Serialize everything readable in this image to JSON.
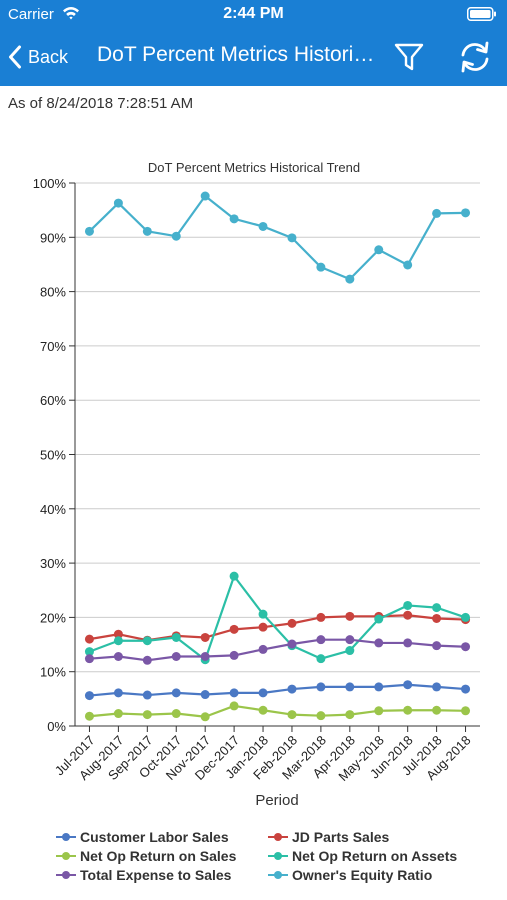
{
  "status_bar": {
    "carrier": "Carrier",
    "time": "2:44 PM"
  },
  "nav": {
    "back_label": "Back",
    "title": "DoT Percent Metrics Historical Trend"
  },
  "as_of": "As of 8/24/2018 7:28:51 AM",
  "colors": {
    "nav_bar": "#1a7fd4",
    "status_bar": "#1a7fd4"
  },
  "icons": {
    "back": "chevron-left-icon",
    "filter": "filter-icon",
    "refresh": "refresh-icon",
    "wifi": "wifi-icon",
    "battery": "battery-icon"
  },
  "chart_data": {
    "type": "line",
    "title": "DoT Percent Metrics Historical Trend",
    "xlabel": "Period",
    "ylabel": "",
    "ylim": [
      0,
      100
    ],
    "yticks": [
      "0%",
      "10%",
      "20%",
      "30%",
      "40%",
      "50%",
      "60%",
      "70%",
      "80%",
      "90%",
      "100%"
    ],
    "grid": "horizontal",
    "legend": "bottom",
    "categories": [
      "Jul-2017",
      "Aug-2017",
      "Sep-2017",
      "Oct-2017",
      "Nov-2017",
      "Dec-2017",
      "Jan-2018",
      "Feb-2018",
      "Mar-2018",
      "Apr-2018",
      "May-2018",
      "Jun-2018",
      "Jul-2018",
      "Aug-2018"
    ],
    "series": [
      {
        "name": "Customer Labor Sales",
        "color": "#4a78c4",
        "values": [
          5.6,
          6.1,
          5.7,
          6.1,
          5.8,
          6.1,
          6.1,
          6.8,
          7.2,
          7.2,
          7.2,
          7.6,
          7.2,
          6.8
        ]
      },
      {
        "name": "JD Parts Sales",
        "color": "#c9433e",
        "values": [
          16.0,
          16.9,
          15.8,
          16.6,
          16.3,
          17.8,
          18.2,
          18.9,
          20.0,
          20.2,
          20.2,
          20.4,
          19.8,
          19.6
        ]
      },
      {
        "name": "Net Op Return on Sales",
        "color": "#9bc54a",
        "values": [
          1.8,
          2.3,
          2.1,
          2.3,
          1.7,
          3.7,
          2.9,
          2.1,
          1.9,
          2.1,
          2.8,
          2.9,
          2.9,
          2.8
        ]
      },
      {
        "name": "Net Op Return on Assets",
        "color": "#2bbfa6",
        "values": [
          13.7,
          15.7,
          15.7,
          16.3,
          12.2,
          27.6,
          20.6,
          14.8,
          12.4,
          13.9,
          19.7,
          22.2,
          21.8,
          20.0
        ]
      },
      {
        "name": "Total Expense to Sales",
        "color": "#7a57a6",
        "values": [
          12.4,
          12.8,
          12.1,
          12.8,
          12.8,
          13.0,
          14.1,
          15.1,
          15.9,
          15.9,
          15.3,
          15.3,
          14.8,
          14.6
        ]
      },
      {
        "name": "Owner's Equity Ratio",
        "color": "#46b0cc",
        "values": [
          91.1,
          96.3,
          91.1,
          90.2,
          97.6,
          93.4,
          92.0,
          89.9,
          84.5,
          82.3,
          87.7,
          84.9,
          94.4,
          94.5
        ]
      }
    ]
  }
}
